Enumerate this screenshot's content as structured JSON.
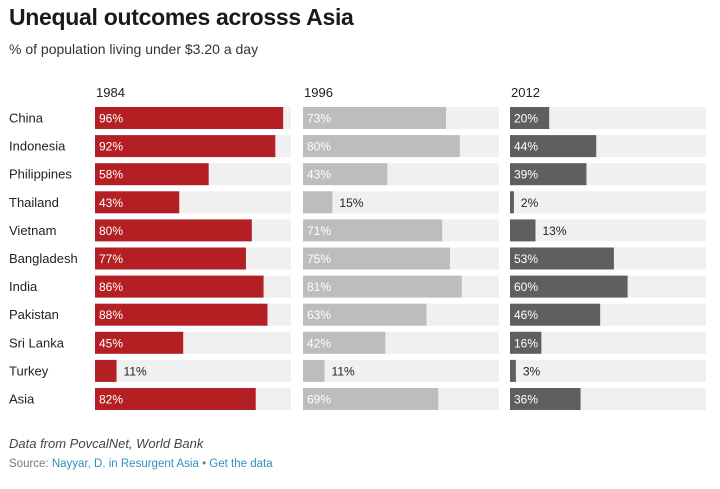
{
  "title": "Unequal outcomes acrosss Asia",
  "subtitle": "% of population living under $3.20 a day",
  "note": "Data from PovcalNet, World Bank",
  "source": {
    "label": "Source:",
    "link_text": "Nayyar, D. in Resurgent Asia",
    "separator": "•",
    "data_link": "Get the data"
  },
  "colors": {
    "1984": "#b41f24",
    "1996": "#bdbdbd",
    "2012": "#5f5f5f",
    "track": "#f0f0f0"
  },
  "chart_data": {
    "type": "bar",
    "orientation": "horizontal",
    "layout": "small multiples by year",
    "categories": [
      "China",
      "Indonesia",
      "Philippines",
      "Thailand",
      "Vietnam",
      "Bangladesh",
      "India",
      "Pakistan",
      "Sri Lanka",
      "Turkey",
      "Asia"
    ],
    "series": [
      {
        "name": "1984",
        "values": [
          96,
          92,
          58,
          43,
          80,
          77,
          86,
          88,
          45,
          11,
          82
        ]
      },
      {
        "name": "1996",
        "values": [
          73,
          80,
          43,
          15,
          71,
          75,
          81,
          63,
          42,
          11,
          69
        ]
      },
      {
        "name": "2012",
        "values": [
          20,
          44,
          39,
          2,
          13,
          53,
          60,
          46,
          16,
          3,
          36
        ]
      }
    ],
    "value_suffix": "%",
    "xlim": [
      0,
      100
    ],
    "grid": false,
    "legend": "none"
  }
}
